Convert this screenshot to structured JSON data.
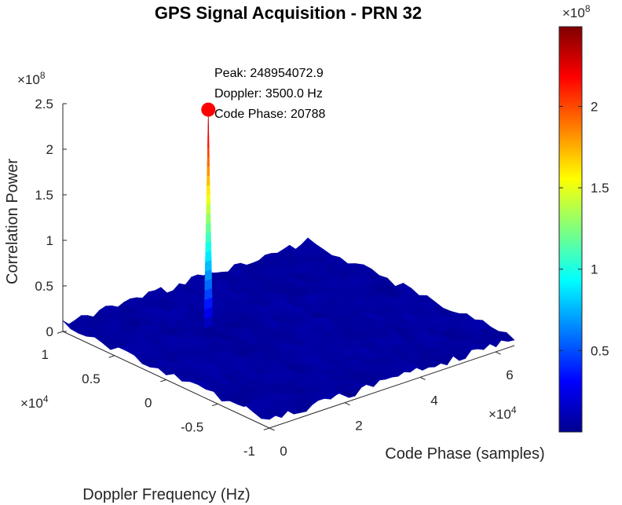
{
  "chart_data": {
    "type": "surface",
    "title": "GPS Signal Acquisition - PRN 32",
    "xlabel": "Code Phase (samples)",
    "ylabel": "Doppler Frequency (Hz)",
    "zlabel": "Correlation Power",
    "x_exponent": "×10",
    "x_exponent_power": "4",
    "y_exponent": "×10",
    "y_exponent_power": "4",
    "z_exponent": "×10",
    "z_exponent_power": "8",
    "xlim": [
      0,
      65000
    ],
    "ylim": [
      -10000,
      10000
    ],
    "zlim": [
      0,
      250000000
    ],
    "x_ticks": [
      0,
      20000,
      40000,
      60000
    ],
    "x_tick_labels": [
      "0",
      "2",
      "4",
      "6"
    ],
    "y_ticks": [
      -10000,
      -5000,
      0,
      5000,
      10000
    ],
    "y_tick_labels": [
      "-1",
      "-0.5",
      "0",
      "0.5",
      "1"
    ],
    "z_ticks": [
      0,
      50000000,
      100000000,
      150000000,
      200000000,
      250000000
    ],
    "z_tick_labels": [
      "0",
      "0.5",
      "1",
      "1.5",
      "2",
      "2.5"
    ],
    "noise_floor": 10000000,
    "peak": {
      "x": 20788,
      "y": 3500,
      "z": 248954072.9,
      "label_lines": [
        "Peak: 248954072.9",
        "Doppler: 3500.0 Hz",
        "Code Phase: 20788"
      ],
      "marker_color": "#ff0000"
    },
    "colormap": "jet",
    "colorbar": {
      "range": [
        0,
        248954072.9
      ],
      "ticks": [
        50000000,
        100000000,
        150000000,
        200000000
      ],
      "tick_labels": [
        "0.5",
        "1",
        "1.5",
        "2"
      ],
      "exponent": "×10",
      "exponent_power": "8"
    },
    "grid": false
  }
}
